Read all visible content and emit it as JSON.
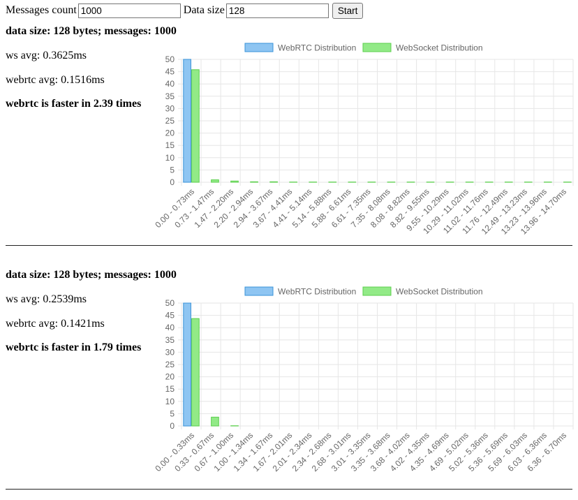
{
  "controls": {
    "count_label": "Messages count",
    "count_value": "1000",
    "size_label": "Data size",
    "size_value": "128",
    "start_label": "Start"
  },
  "results": [
    {
      "heading": "data size: 128 bytes; messages: 1000",
      "ws_avg": "ws avg: 0.3625ms",
      "webrtc_avg": "webrtc avg: 0.1516ms",
      "verdict": "webrtc is faster in 2.39 times"
    },
    {
      "heading": "data size: 128 bytes; messages: 1000",
      "ws_avg": "ws avg: 0.2539ms",
      "webrtc_avg": "webrtc avg: 0.1421ms",
      "verdict": "webrtc is faster in 1.79 times"
    }
  ],
  "colors": {
    "webrtc_fill": "#8ec5f2",
    "webrtc_border": "#3a93d8",
    "ws_fill": "#92ea87",
    "ws_border": "#5ccf4e",
    "grid": "#e6e6e6",
    "tick_text": "#666666"
  },
  "chart_data": [
    {
      "type": "bar",
      "legend": [
        "WebRTC Distribution",
        "WebSocket Distribution"
      ],
      "ylim": [
        0,
        50
      ],
      "yticks": [
        0,
        5,
        10,
        15,
        20,
        25,
        30,
        35,
        40,
        45,
        50
      ],
      "categories": [
        "0.00 - 0.73ms",
        "0.73 - 1.47ms",
        "1.47 - 2.20ms",
        "2.20 - 2.94ms",
        "2.94 - 3.67ms",
        "3.67 - 4.41ms",
        "4.41 - 5.14ms",
        "5.14 - 5.88ms",
        "5.88 - 6.61ms",
        "6.61 - 7.35ms",
        "7.35 - 8.08ms",
        "8.08 - 8.82ms",
        "8.82 - 9.55ms",
        "9.55 - 10.29ms",
        "10.29 - 11.02ms",
        "11.02 - 11.76ms",
        "11.76 - 12.49ms",
        "12.49 - 13.23ms",
        "13.23 - 13.96ms",
        "13.96 - 14.70ms"
      ],
      "series": [
        {
          "name": "WebRTC Distribution",
          "values": [
            50,
            0,
            0,
            0,
            0,
            0,
            0,
            0,
            0,
            0,
            0,
            0,
            0,
            0,
            0,
            0,
            0,
            0,
            0,
            0
          ]
        },
        {
          "name": "WebSocket Distribution",
          "values": [
            45.8,
            1.0,
            0.5,
            0.2,
            0.2,
            0.1,
            0.1,
            0.1,
            0.1,
            0.1,
            0.1,
            0.1,
            0.1,
            0.1,
            0.1,
            0.1,
            0.1,
            0.1,
            0.1,
            0.1
          ]
        }
      ]
    },
    {
      "type": "bar",
      "legend": [
        "WebRTC Distribution",
        "WebSocket Distribution"
      ],
      "ylim": [
        0,
        50
      ],
      "yticks": [
        0,
        5,
        10,
        15,
        20,
        25,
        30,
        35,
        40,
        45,
        50
      ],
      "categories": [
        "0.00 - 0.33ms",
        "0.33 - 0.67ms",
        "0.67 - 1.00ms",
        "1.00 - 1.34ms",
        "1.34 - 1.67ms",
        "1.67 - 2.01ms",
        "2.01 - 2.34ms",
        "2.34 - 2.68ms",
        "2.68 - 3.01ms",
        "3.01 - 3.35ms",
        "3.35 - 3.68ms",
        "3.68 - 4.02ms",
        "4.02 - 4.35ms",
        "4.35 - 4.69ms",
        "4.69 - 5.02ms",
        "5.02 - 5.36ms",
        "5.36 - 5.69ms",
        "5.69 - 6.03ms",
        "6.03 - 6.36ms",
        "6.36 - 6.70ms"
      ],
      "series": [
        {
          "name": "WebRTC Distribution",
          "values": [
            50,
            0,
            0,
            0,
            0,
            0,
            0,
            0,
            0,
            0,
            0,
            0,
            0,
            0,
            0,
            0,
            0,
            0,
            0,
            0
          ]
        },
        {
          "name": "WebSocket Distribution",
          "values": [
            43.7,
            3.6,
            0.1,
            0,
            0,
            0,
            0,
            0,
            0,
            0,
            0,
            0,
            0,
            0,
            0,
            0,
            0,
            0,
            0,
            0
          ]
        }
      ]
    }
  ]
}
